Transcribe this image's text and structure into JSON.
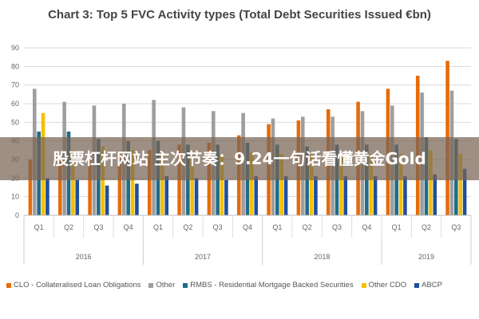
{
  "banner_text": "股票杠杆网站 主次节奏：9.24一句话看懂黄金Gold",
  "chart_data": {
    "type": "bar",
    "title": "Chart 3: Top 5 FVC Activity types (Total Debt Securities Issued €bn)",
    "categories": [
      "Q1",
      "Q2",
      "Q3",
      "Q4",
      "Q1",
      "Q2",
      "Q3",
      "Q4",
      "Q1",
      "Q2",
      "Q3",
      "Q4",
      "Q1",
      "Q2",
      "Q3"
    ],
    "groups": [
      {
        "label": "2016",
        "span": 4
      },
      {
        "label": "2017",
        "span": 4
      },
      {
        "label": "2018",
        "span": 4
      },
      {
        "label": "2019",
        "span": 3
      }
    ],
    "ylim": [
      0,
      90
    ],
    "yticks": [
      0,
      10,
      20,
      30,
      40,
      50,
      60,
      70,
      80,
      90
    ],
    "grid": true,
    "legend_position": "bottom",
    "series": [
      {
        "name": "CLO - Collateralised Loan Obligations",
        "color": "#E46C0A",
        "values": [
          30,
          30,
          32,
          33,
          35,
          38,
          39,
          43,
          49,
          51,
          57,
          61,
          68,
          75,
          83
        ]
      },
      {
        "name": "Other",
        "color": "#9E9E9E",
        "values": [
          68,
          61,
          59,
          60,
          62,
          58,
          56,
          55,
          52,
          53,
          53,
          56,
          59,
          66,
          67
        ]
      },
      {
        "name": "RMBS - Residential Mortgage Backed Securities",
        "color": "#1F6B8A",
        "values": [
          45,
          45,
          41,
          40,
          40,
          38,
          38,
          39,
          38,
          37,
          38,
          38,
          38,
          42,
          41
        ]
      },
      {
        "name": "Other CDO",
        "color": "#F5C000",
        "values": [
          55,
          35,
          37,
          35,
          34,
          34,
          33,
          34,
          33,
          33,
          33,
          33,
          33,
          35,
          33
        ]
      },
      {
        "name": "ABCP",
        "color": "#1F4E9E",
        "values": [
          20,
          19,
          16,
          17,
          21,
          20,
          19,
          21,
          21,
          21,
          21,
          21,
          21,
          22,
          25
        ]
      }
    ]
  }
}
